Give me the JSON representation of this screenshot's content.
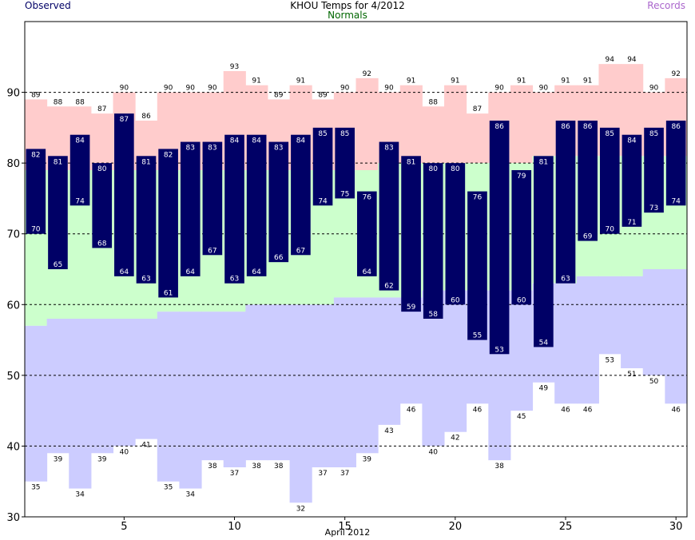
{
  "header": {
    "title": "KHOU Temps for 4/2012",
    "observed_label": "Observed",
    "normals_label": "Normals",
    "records_label": "Records"
  },
  "colors": {
    "record_high": "#ffcccc",
    "normal_band": "#ccffcc",
    "record_low": "#ccccff",
    "observed": "#000066",
    "observed_label_text": "#ffffff",
    "normals_label": "#006600",
    "records_label": "#aa66cc"
  },
  "chart_data": {
    "type": "bar",
    "title": "KHOU Temps for 4/2012",
    "xlabel": "April 2012",
    "ylabel": "",
    "xlim": [
      1,
      30
    ],
    "ylim": [
      30,
      100
    ],
    "x_ticks": [
      5,
      10,
      15,
      20,
      25,
      30
    ],
    "y_ticks": [
      30,
      40,
      50,
      60,
      70,
      80,
      90
    ],
    "grid_lines": [
      40,
      50,
      60,
      70,
      80,
      90
    ],
    "days": [
      1,
      2,
      3,
      4,
      5,
      6,
      7,
      8,
      9,
      10,
      11,
      12,
      13,
      14,
      15,
      16,
      17,
      18,
      19,
      20,
      21,
      22,
      23,
      24,
      25,
      26,
      27,
      28,
      29,
      30
    ],
    "series": [
      {
        "name": "Observed high",
        "values": [
          82,
          81,
          84,
          80,
          87,
          81,
          82,
          83,
          83,
          84,
          84,
          83,
          84,
          85,
          85,
          76,
          83,
          81,
          80,
          80,
          76,
          86,
          79,
          81,
          86,
          86,
          85,
          84,
          85,
          86
        ]
      },
      {
        "name": "Observed low",
        "values": [
          70,
          65,
          74,
          68,
          64,
          63,
          61,
          64,
          67,
          63,
          64,
          66,
          67,
          74,
          75,
          64,
          62,
          59,
          58,
          60,
          55,
          53,
          60,
          54,
          63,
          69,
          70,
          71,
          73,
          74
        ]
      },
      {
        "name": "Record high",
        "values": [
          89,
          88,
          88,
          87,
          90,
          86,
          90,
          90,
          90,
          93,
          91,
          89,
          91,
          89,
          90,
          92,
          90,
          91,
          88,
          91,
          87,
          90,
          91,
          90,
          91,
          91,
          94,
          94,
          90,
          92
        ]
      },
      {
        "name": "Record low",
        "values": [
          35,
          39,
          34,
          39,
          40,
          41,
          35,
          34,
          38,
          37,
          38,
          38,
          32,
          37,
          37,
          39,
          43,
          46,
          40,
          42,
          46,
          38,
          45,
          49,
          46,
          46,
          53,
          51,
          50,
          46
        ]
      },
      {
        "name": "Normal high",
        "values": [
          79,
          79,
          79,
          79,
          79,
          79,
          79,
          79,
          79,
          79,
          79,
          79,
          79,
          79,
          79,
          79,
          80,
          80,
          80,
          80,
          80,
          80,
          80,
          81,
          81,
          81,
          81,
          81,
          81,
          81
        ]
      },
      {
        "name": "Normal low",
        "values": [
          57,
          58,
          58,
          58,
          58,
          58,
          59,
          59,
          59,
          59,
          60,
          60,
          60,
          60,
          61,
          61,
          61,
          61,
          62,
          62,
          62,
          62,
          62,
          63,
          63,
          64,
          64,
          64,
          65,
          65
        ]
      }
    ]
  }
}
